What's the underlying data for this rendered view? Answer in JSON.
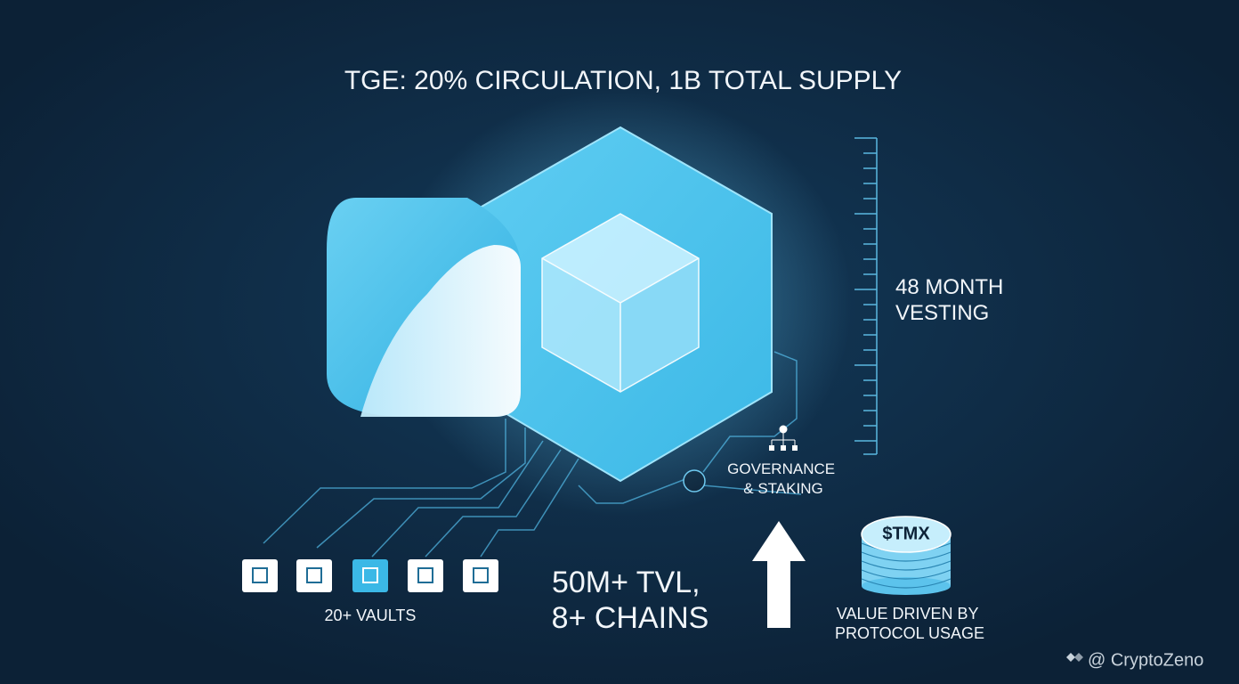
{
  "title": "TGE: 20% CIRCULATION, 1B TOTAL SUPPLY",
  "vesting": {
    "lines": [
      "48 MONTH",
      "VESTING"
    ]
  },
  "governance": {
    "lines": [
      "GOVERNANCE",
      "& STAKING"
    ]
  },
  "token": {
    "symbol": "$TMX",
    "lines": [
      "VALUE DRIVEN BY",
      "PROTOCOL USAGE"
    ]
  },
  "tvl": {
    "lines": [
      "50M+ TVL,",
      "8+ CHAINS"
    ]
  },
  "vaults": {
    "label": "20+ VAULTS"
  },
  "watermark": "@ CryptoZeno"
}
